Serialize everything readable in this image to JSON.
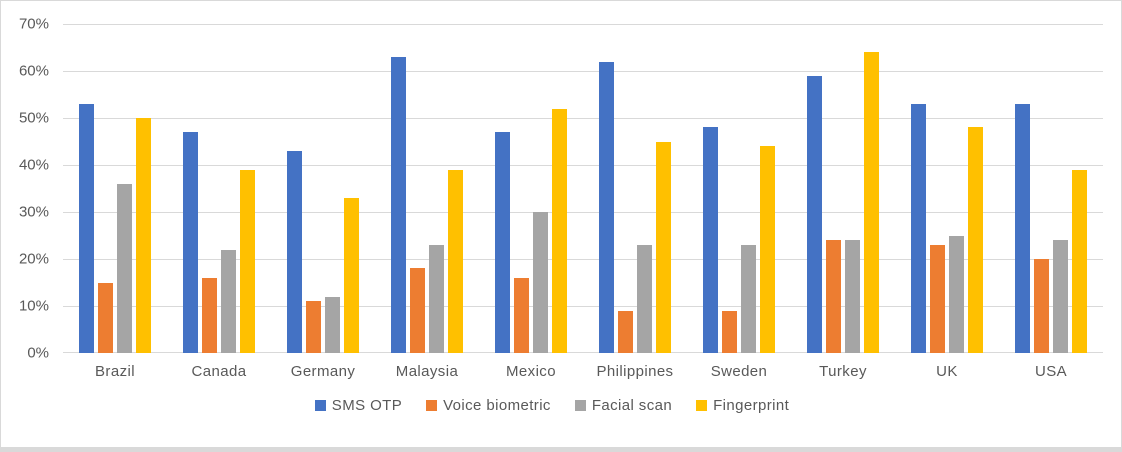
{
  "chart_data": {
    "type": "bar",
    "title": "",
    "xlabel": "",
    "ylabel": "",
    "categories": [
      "Brazil",
      "Canada",
      "Germany",
      "Malaysia",
      "Mexico",
      "Philippines",
      "Sweden",
      "Turkey",
      "UK",
      "USA"
    ],
    "series": [
      {
        "name": "SMS OTP",
        "color": "#4472C4",
        "values": [
          53,
          47,
          43,
          63,
          47,
          62,
          48,
          59,
          53,
          53
        ]
      },
      {
        "name": "Voice biometric",
        "color": "#ED7D31",
        "values": [
          15,
          16,
          11,
          18,
          16,
          9,
          9,
          24,
          23,
          20
        ]
      },
      {
        "name": "Facial scan",
        "color": "#A5A5A5",
        "values": [
          36,
          22,
          12,
          23,
          30,
          23,
          23,
          24,
          25,
          24
        ]
      },
      {
        "name": "Fingerprint",
        "color": "#FFC000",
        "values": [
          50,
          39,
          33,
          39,
          52,
          45,
          44,
          64,
          48,
          39
        ]
      }
    ],
    "ylim": [
      0,
      70
    ],
    "ytick_step": 10,
    "ytick_labels": [
      "0%",
      "10%",
      "20%",
      "30%",
      "40%",
      "50%",
      "60%",
      "70%"
    ],
    "grid": true,
    "legend_position": "bottom"
  },
  "colors": {
    "gridline": "#D9D9D9",
    "axis_text": "#595959",
    "background": "#FFFFFF",
    "frame_border": "#D9D9D9",
    "bottom_strip": "#D9D9D9"
  }
}
